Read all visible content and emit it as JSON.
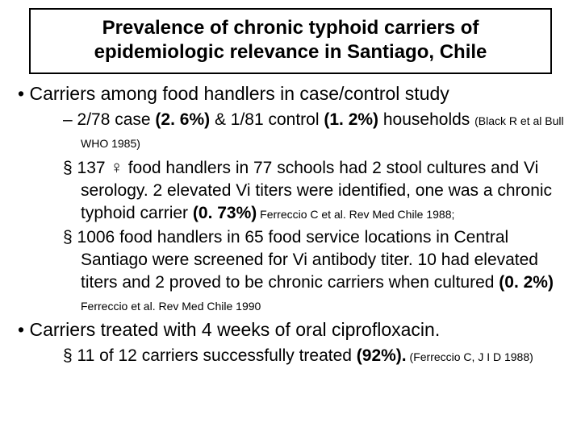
{
  "colors": {
    "background": "#ffffff",
    "text": "#000000",
    "border": "#000000"
  },
  "title": "Prevalence of chronic typhoid carriers of epidemiologic relevance in Santiago, Chile",
  "bullet1": "Carriers among food handlers in case/control study",
  "sub1_pre": "2/78 case ",
  "sub1_b1": "(2. 6%)",
  "sub1_mid": " & 1/81 control ",
  "sub1_b2": "(1. 2%)",
  "sub1_post": " households ",
  "sub1_cite": "(Black R et al Bull WHO 1985)",
  "sub2_n": "137 ",
  "sub2_sym": "♀",
  "sub2_pre": " food handlers in 77 schools had 2 stool cultures and Vi serology. 2 elevated Vi titers were identified, one was a chronic typhoid carrier ",
  "sub2_b": "(0. 73%)",
  "sub2_cite": " Ferreccio C et al. Rev Med Chile 1988;",
  "sub3_pre": "1006 food handlers in 65 food service locations in Central Santiago were screened for Vi antibody titer. 10 had elevated titers and 2 proved to be chronic carriers when cultured ",
  "sub3_b": "(0. 2%)",
  "sub3_cite": " Ferreccio et al. Rev Med Chile 1990",
  "bullet2": "Carriers treated with 4 weeks of oral ciprofloxacin.",
  "sub4_pre": "11 of 12 carriers successfully treated ",
  "sub4_b": "(92%).",
  "sub4_cite": " (Ferreccio C, J I D 1988)"
}
